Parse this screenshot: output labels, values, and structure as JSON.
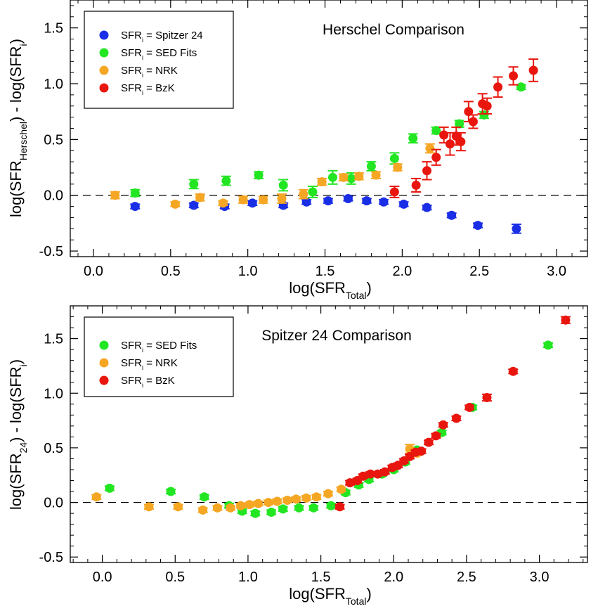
{
  "colors": {
    "blue": "#1a2ee6",
    "green": "#22e622",
    "orange": "#f5a623",
    "red": "#e8160e",
    "axis": "#000000"
  },
  "chart_data": [
    {
      "type": "scatter",
      "title": "Herschel Comparison",
      "xlabel": "log(SFR_Total)",
      "ylabel": "log(SFR_Herschel) - log(SFR_i)",
      "xlabel_parts": {
        "main": "log(SFR",
        "sub": "Total",
        "close": ")"
      },
      "ylabel_parts": {
        "a": "log(SFR",
        "sub1": "Herschel",
        "b": ") - log(SFR",
        "sub2": "i",
        "c": ")"
      },
      "xlim": [
        -0.15,
        3.2
      ],
      "ylim": [
        -0.55,
        1.75
      ],
      "xticks": [
        "0.0",
        "0.5",
        "1.0",
        "1.5",
        "2.0",
        "2.5",
        "3.0"
      ],
      "xtick_values": [
        0.0,
        0.5,
        1.0,
        1.5,
        2.0,
        2.5,
        3.0
      ],
      "yticks": [
        "-0.5",
        "0.0",
        "0.5",
        "1.0",
        "1.5"
      ],
      "ytick_values": [
        -0.5,
        0.0,
        0.5,
        1.0,
        1.5
      ],
      "reference_line": 0.0,
      "legend_position": "top-left",
      "series": [
        {
          "name": "SFR_i = Spitzer 24",
          "legend_label": {
            "pre": "SFR",
            "sub": "i",
            "post": " = Spitzer 24"
          },
          "color": "blue",
          "points": [
            [
              0.27,
              -0.1,
              0.02
            ],
            [
              0.65,
              -0.09,
              0.02
            ],
            [
              0.85,
              -0.1,
              0.02
            ],
            [
              1.03,
              -0.07,
              0.02
            ],
            [
              1.23,
              -0.09,
              0.02
            ],
            [
              1.38,
              -0.06,
              0.02
            ],
            [
              1.52,
              -0.05,
              0.02
            ],
            [
              1.65,
              -0.03,
              0.02
            ],
            [
              1.77,
              -0.05,
              0.02
            ],
            [
              1.88,
              -0.06,
              0.02
            ],
            [
              2.01,
              -0.08,
              0.02
            ],
            [
              2.16,
              -0.11,
              0.02
            ],
            [
              2.32,
              -0.18,
              0.02
            ],
            [
              2.49,
              -0.27,
              0.02
            ],
            [
              2.74,
              -0.3,
              0.04
            ]
          ]
        },
        {
          "name": "SFR_i = SED Fits",
          "legend_label": {
            "pre": "SFR",
            "sub": "i",
            "post": " = SED Fits"
          },
          "color": "green",
          "points": [
            [
              0.27,
              0.02,
              0.03
            ],
            [
              0.65,
              0.1,
              0.04
            ],
            [
              0.86,
              0.13,
              0.04
            ],
            [
              1.07,
              0.18,
              0.03
            ],
            [
              1.23,
              0.09,
              0.05
            ],
            [
              1.42,
              0.03,
              0.05
            ],
            [
              1.55,
              0.16,
              0.06
            ],
            [
              1.67,
              0.15,
              0.05
            ],
            [
              1.8,
              0.26,
              0.04
            ],
            [
              1.95,
              0.33,
              0.05
            ],
            [
              2.07,
              0.51,
              0.04
            ],
            [
              2.22,
              0.58,
              0.03
            ],
            [
              2.37,
              0.64,
              0.03
            ],
            [
              2.53,
              0.72,
              0.03
            ],
            [
              2.77,
              0.97,
              0.02
            ]
          ]
        },
        {
          "name": "SFR_i = NRK",
          "legend_label": {
            "pre": "SFR",
            "sub": "i",
            "post": " = NRK"
          },
          "color": "orange",
          "points": [
            [
              0.14,
              0.0,
              0.03
            ],
            [
              0.53,
              -0.08,
              0.02
            ],
            [
              0.69,
              -0.02,
              0.03
            ],
            [
              0.84,
              -0.07,
              0.02
            ],
            [
              0.97,
              -0.04,
              0.03
            ],
            [
              1.1,
              -0.04,
              0.03
            ],
            [
              1.22,
              -0.03,
              0.04
            ],
            [
              1.36,
              0.01,
              0.04
            ],
            [
              1.48,
              0.12,
              0.03
            ],
            [
              1.62,
              0.16,
              0.03
            ],
            [
              1.72,
              0.17,
              0.03
            ],
            [
              1.83,
              0.18,
              0.03
            ],
            [
              1.97,
              0.25,
              0.03
            ],
            [
              2.18,
              0.42,
              0.04
            ]
          ]
        },
        {
          "name": "SFR_i = BzK",
          "legend_label": {
            "pre": "SFR",
            "sub": "i",
            "post": " = BzK"
          },
          "color": "red",
          "points": [
            [
              1.95,
              0.03,
              0.05
            ],
            [
              2.09,
              0.09,
              0.06
            ],
            [
              2.16,
              0.22,
              0.08
            ],
            [
              2.22,
              0.34,
              0.07
            ],
            [
              2.27,
              0.54,
              0.07
            ],
            [
              2.31,
              0.46,
              0.1
            ],
            [
              2.35,
              0.53,
              0.08
            ],
            [
              2.38,
              0.48,
              0.08
            ],
            [
              2.43,
              0.75,
              0.09
            ],
            [
              2.46,
              0.66,
              0.06
            ],
            [
              2.52,
              0.82,
              0.09
            ],
            [
              2.55,
              0.8,
              0.07
            ],
            [
              2.62,
              0.97,
              0.09
            ],
            [
              2.72,
              1.07,
              0.08
            ],
            [
              2.85,
              1.12,
              0.1
            ]
          ]
        }
      ]
    },
    {
      "type": "scatter",
      "title": "Spitzer 24 Comparison",
      "xlabel": "log(SFR_Total)",
      "ylabel": "log(SFR_24) - log(SFR_i)",
      "xlabel_parts": {
        "main": "log(SFR",
        "sub": "Total",
        "close": ")"
      },
      "ylabel_parts": {
        "a": "log(SFR",
        "sub1": "24",
        "b": ") - log(SFR",
        "sub2": "i",
        "c": ")"
      },
      "xlim": [
        -0.22,
        3.33
      ],
      "ylim": [
        -0.55,
        1.8
      ],
      "xticks": [
        "0.0",
        "0.5",
        "1.0",
        "1.5",
        "2.0",
        "2.5",
        "3.0"
      ],
      "xtick_values": [
        0.0,
        0.5,
        1.0,
        1.5,
        2.0,
        2.5,
        3.0
      ],
      "yticks": [
        "-0.5",
        "0.0",
        "0.5",
        "1.0",
        "1.5"
      ],
      "ytick_values": [
        -0.5,
        0.0,
        0.5,
        1.0,
        1.5
      ],
      "reference_line": 0.0,
      "legend_position": "top-left",
      "series": [
        {
          "name": "SFR_i = SED Fits",
          "legend_label": {
            "pre": "SFR",
            "sub": "i",
            "post": " = SED Fits"
          },
          "color": "green",
          "points": [
            [
              0.05,
              0.13,
              0.02
            ],
            [
              0.47,
              0.1,
              0.02
            ],
            [
              0.7,
              0.05,
              0.02
            ],
            [
              0.87,
              -0.03,
              0.02
            ],
            [
              0.96,
              -0.08,
              0.02
            ],
            [
              1.05,
              -0.1,
              0.02
            ],
            [
              1.16,
              -0.09,
              0.02
            ],
            [
              1.24,
              -0.06,
              0.02
            ],
            [
              1.35,
              -0.05,
              0.02
            ],
            [
              1.45,
              -0.05,
              0.02
            ],
            [
              1.57,
              -0.03,
              0.02
            ],
            [
              1.67,
              0.09,
              0.02
            ],
            [
              1.76,
              0.16,
              0.02
            ],
            [
              1.83,
              0.21,
              0.02
            ],
            [
              1.92,
              0.26,
              0.02
            ],
            [
              2.0,
              0.3,
              0.02
            ],
            [
              2.08,
              0.37,
              0.02
            ],
            [
              2.16,
              0.48,
              0.02
            ],
            [
              2.33,
              0.64,
              0.02
            ],
            [
              2.54,
              0.87,
              0.02
            ],
            [
              3.06,
              1.44,
              0.02
            ]
          ]
        },
        {
          "name": "SFR_i = NRK",
          "legend_label": {
            "pre": "SFR",
            "sub": "i",
            "post": " = NRK"
          },
          "color": "orange",
          "points": [
            [
              -0.04,
              0.05,
              0.02
            ],
            [
              0.32,
              -0.04,
              0.02
            ],
            [
              0.52,
              -0.04,
              0.02
            ],
            [
              0.69,
              -0.07,
              0.02
            ],
            [
              0.79,
              -0.05,
              0.02
            ],
            [
              0.88,
              -0.05,
              0.02
            ],
            [
              0.95,
              -0.03,
              0.02
            ],
            [
              1.01,
              -0.02,
              0.02
            ],
            [
              1.07,
              -0.01,
              0.02
            ],
            [
              1.14,
              0.0,
              0.02
            ],
            [
              1.2,
              0.01,
              0.02
            ],
            [
              1.27,
              0.02,
              0.02
            ],
            [
              1.33,
              0.03,
              0.02
            ],
            [
              1.4,
              0.04,
              0.02
            ],
            [
              1.47,
              0.05,
              0.02
            ],
            [
              1.55,
              0.08,
              0.02
            ],
            [
              1.64,
              0.12,
              0.02
            ],
            [
              2.11,
              0.49,
              0.04
            ],
            [
              2.16,
              0.45,
              0.02
            ]
          ]
        },
        {
          "name": "SFR_i = BzK",
          "legend_label": {
            "pre": "SFR",
            "sub": "i",
            "post": " = BzK"
          },
          "color": "red",
          "points": [
            [
              1.63,
              -0.04,
              0.02
            ],
            [
              1.7,
              0.18,
              0.02
            ],
            [
              1.75,
              0.2,
              0.02
            ],
            [
              1.79,
              0.24,
              0.02
            ],
            [
              1.84,
              0.26,
              0.02
            ],
            [
              1.89,
              0.26,
              0.02
            ],
            [
              1.94,
              0.28,
              0.02
            ],
            [
              1.99,
              0.32,
              0.02
            ],
            [
              2.03,
              0.34,
              0.02
            ],
            [
              2.07,
              0.38,
              0.02
            ],
            [
              2.11,
              0.42,
              0.02
            ],
            [
              2.15,
              0.46,
              0.02
            ],
            [
              2.19,
              0.47,
              0.02
            ],
            [
              2.24,
              0.55,
              0.02
            ],
            [
              2.29,
              0.61,
              0.02
            ],
            [
              2.34,
              0.71,
              0.02
            ],
            [
              2.43,
              0.77,
              0.02
            ],
            [
              2.52,
              0.87,
              0.02
            ],
            [
              2.64,
              0.96,
              0.03
            ],
            [
              2.82,
              1.2,
              0.02
            ],
            [
              3.18,
              1.67,
              0.03
            ]
          ]
        }
      ]
    }
  ]
}
